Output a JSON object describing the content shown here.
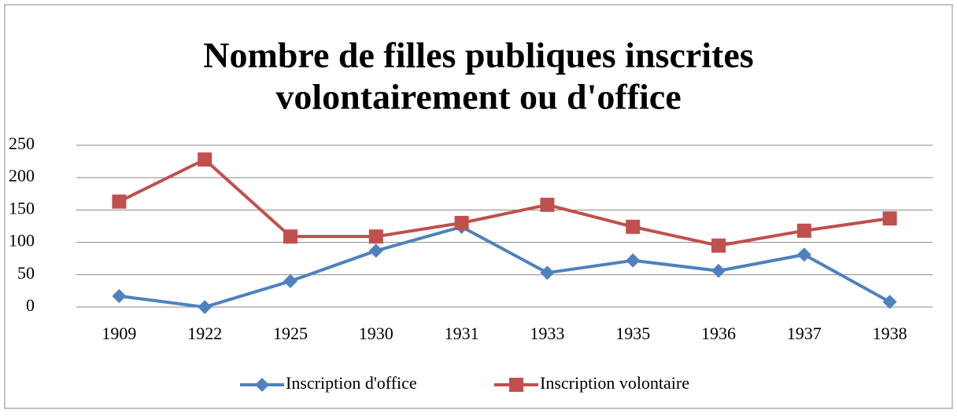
{
  "chart_data": {
    "type": "line",
    "title": [
      "Nombre de filles publiques inscrites",
      "volontairement ou d'office"
    ],
    "categories": [
      "1909",
      "1922",
      "1925",
      "1930",
      "1931",
      "1933",
      "1935",
      "1936",
      "1937",
      "1938"
    ],
    "series": [
      {
        "name": "Inscription d'office",
        "color": "#4f81bd",
        "marker": "diamond",
        "values": [
          17,
          0,
          40,
          87,
          124,
          53,
          72,
          56,
          81,
          8
        ]
      },
      {
        "name": "Inscription volontaire",
        "color": "#c0504d",
        "marker": "square",
        "values": [
          163,
          228,
          109,
          109,
          130,
          158,
          124,
          95,
          118,
          137
        ]
      }
    ],
    "ylim": [
      0,
      250
    ],
    "yticks": [
      0,
      50,
      100,
      150,
      200,
      250
    ],
    "grid": true,
    "legend": "bottom"
  }
}
